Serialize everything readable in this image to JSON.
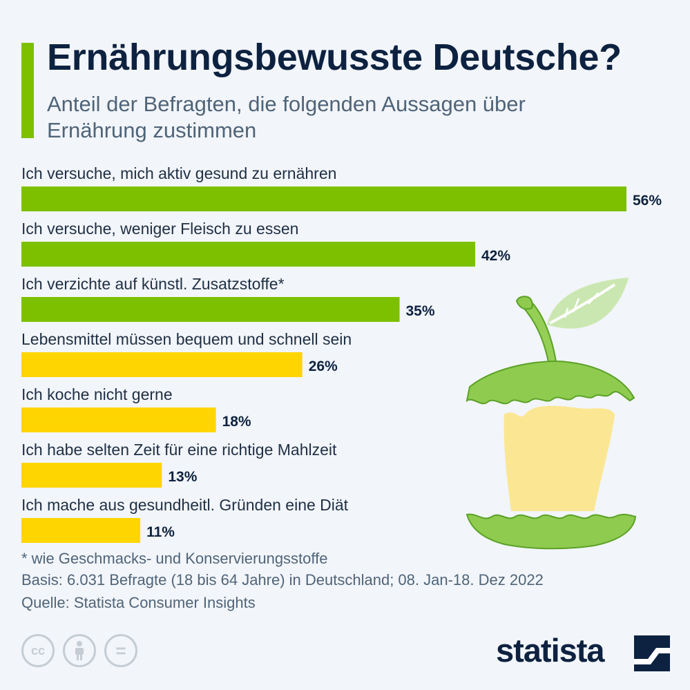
{
  "header": {
    "title": "Ernährungsbewusste Deutsche?",
    "subtitle": "Anteil der Befragten, die folgenden Aussagen über Ernährung zustimmen"
  },
  "colors": {
    "accent": "#7cc000",
    "positive": "#7cc000",
    "negative": "#ffd500",
    "title": "#0d2240",
    "text": "#4f6479"
  },
  "chart_data": {
    "type": "bar",
    "orientation": "horizontal",
    "categories": [
      "Ich versuche, mich aktiv gesund zu ernähren",
      "Ich versuche, weniger Fleisch zu essen",
      "Ich verzichte auf künstl. Zusatzstoffe*",
      "Lebensmittel müssen bequem und schnell sein",
      "Ich koche nicht gerne",
      "Ich habe selten Zeit für eine richtige Mahlzeit",
      "Ich mache aus gesundheitl. Gründen eine Diät"
    ],
    "values": [
      56,
      42,
      35,
      26,
      18,
      13,
      11
    ],
    "value_labels": [
      "56%",
      "42%",
      "35%",
      "26%",
      "18%",
      "13%",
      "11%"
    ],
    "bar_colors": [
      "#7cc000",
      "#7cc000",
      "#7cc000",
      "#ffd500",
      "#ffd500",
      "#ffd500",
      "#ffd500"
    ],
    "unit": "%",
    "xlim": [
      0,
      56
    ],
    "grid": false,
    "legend": false
  },
  "footer": {
    "note": "* wie Geschmacks- und Konservierungsstoffe",
    "basis": "Basis: 6.031 Befragte (18 bis 64 Jahre) in Deutschland; 08. Jan-18. Dez 2022",
    "source": "Quelle: Statista Consumer Insights"
  },
  "license": {
    "cc_label": "cc",
    "equals_label": "="
  },
  "brand": {
    "logo_text": "statista"
  },
  "icons": [
    "creative-commons-icon",
    "attribution-icon",
    "no-derivatives-icon",
    "statista-logo-mark",
    "apple-core-illustration"
  ]
}
